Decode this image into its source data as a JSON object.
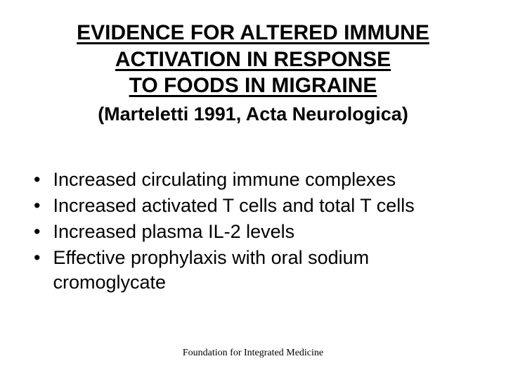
{
  "title_lines": [
    "EVIDENCE FOR ALTERED IMMUNE",
    "ACTIVATION IN RESPONSE",
    "TO FOODS IN MIGRAINE"
  ],
  "subtitle": "(Marteletti 1991, Acta Neurologica)",
  "bullets": [
    "Increased circulating immune complexes",
    "Increased activated T cells and total T cells",
    "Increased plasma IL-2 levels",
    "Effective prophylaxis with oral sodium cromoglycate"
  ],
  "footer": "Foundation for Integrated Medicine",
  "styling": {
    "background_color": "#ffffff",
    "text_color": "#000000",
    "title_fontsize": 30,
    "title_fontweight": "bold",
    "title_underline": true,
    "subtitle_fontsize": 27,
    "subtitle_fontweight": "bold",
    "bullet_fontsize": 27,
    "footer_fontsize": 14,
    "footer_fontfamily": "Times New Roman",
    "body_fontfamily": "Arial"
  }
}
